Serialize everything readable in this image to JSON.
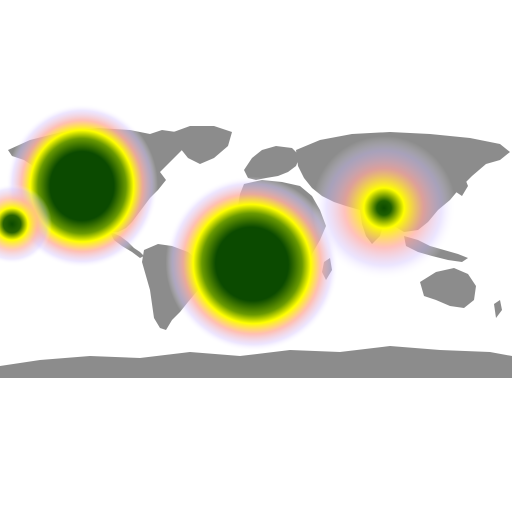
{
  "map": {
    "projection": "equirectangular",
    "land_color": "#8c8c8c",
    "background_color": "#ffffff",
    "heat_colors": {
      "core": "#0b4a00",
      "mid": "#ffff00",
      "outer": "#ff9a9a",
      "edge": "#c8b8ff"
    },
    "hotspots": [
      {
        "id": "north-america",
        "lon": -96,
        "lat": 42,
        "intensity": 1.0
      },
      {
        "id": "south-atlantic-brazil",
        "lon": -12,
        "lat": -10,
        "intensity": 1.0
      },
      {
        "id": "south-asia",
        "lon": 90,
        "lat": 24,
        "intensity": 0.45
      },
      {
        "id": "hawaii",
        "lon": -156,
        "lat": 20,
        "intensity": 0.35
      }
    ]
  }
}
